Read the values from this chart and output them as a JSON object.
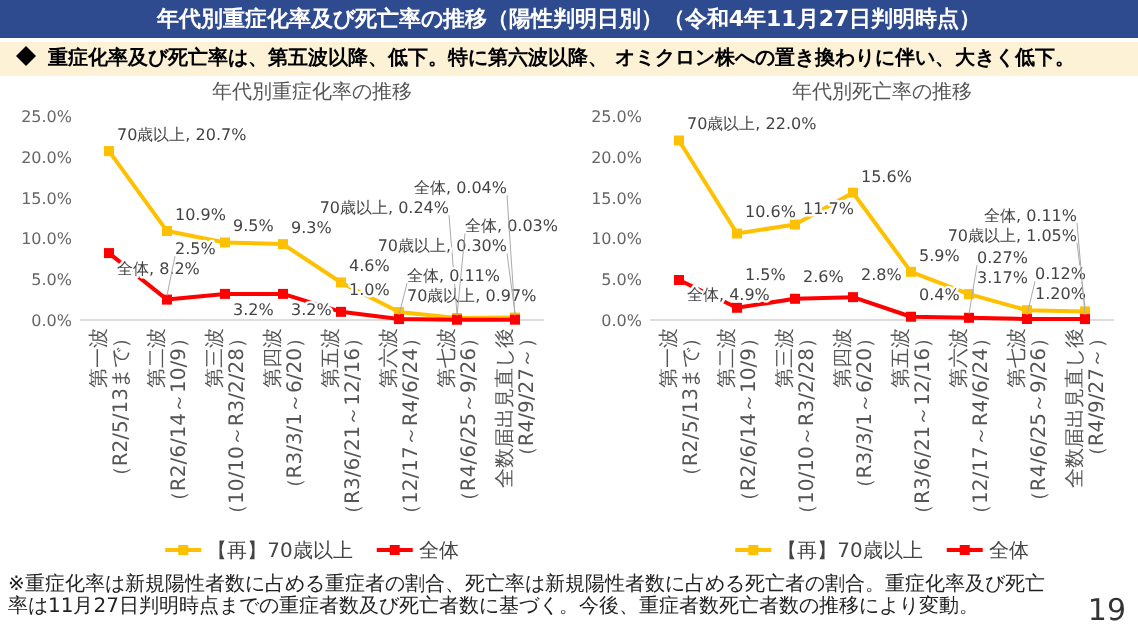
{
  "chart_data": [
    {
      "type": "other",
      "title": "年代別重症化率及び死亡率の推移（陽性判明日別）（令和4年11月27日判明時点）",
      "subtitle": "重症化率及び死亡率は、第五波以降、低下。特に第六波以降、 オミクロン株への置き換わりに伴い、大きく低下。",
      "annotations": [
        "※重症化率は新規陽性者数に占める重症者の割合、死亡率は新規陽性者数に占める死亡者の割合。重症化率及び死亡率は11月27日判明時点までの重症者数及び死亡者数に基づく。今後、重症者数死亡者数の推移により変動。",
        "19"
      ]
    },
    {
      "type": "line",
      "title": "年代別重症化率の推移",
      "categories": [
        "第一波（R2/5/13まで）",
        "第二波（R2/6/14～10/9）",
        "第三波（10/10～R3/2/28）",
        "第四波（R3/3/1～6/20）",
        "第五波（R3/6/21～12/16）",
        "第六波（12/17～R4/6/24）",
        "第七波（R4/6/25～9/26）",
        "全数届出見直し後（R4/9/27～）"
      ],
      "series": [
        {
          "name": "【再】70歳以上",
          "color": "#ffc000",
          "values": [
            20.7,
            10.9,
            9.5,
            9.3,
            4.6,
            0.97,
            0.24,
            0.3
          ],
          "value_labels": [
            "70歳以上, 20.7%",
            "10.9%",
            "9.5%",
            "9.3%",
            "4.6%",
            "70歳以上, 0.97%",
            "70歳以上, 0.24%",
            "70歳以上, 0.30%"
          ]
        },
        {
          "name": "全体",
          "color": "#ff0000",
          "values": [
            8.2,
            2.5,
            3.2,
            3.2,
            1.0,
            0.11,
            0.03,
            0.04
          ],
          "value_labels": [
            "全体, 8.2%",
            "2.5%",
            "3.2%",
            "3.2%",
            "1.0%",
            "全体, 0.11%",
            "全体, 0.03%",
            "全体, 0.04%"
          ]
        }
      ],
      "ylim": [
        0,
        25
      ],
      "yticks": [
        {
          "value": 0,
          "label": "0.0%"
        },
        {
          "value": 5,
          "label": "5.0%"
        },
        {
          "value": 10,
          "label": "10.0%"
        },
        {
          "value": 15,
          "label": "15.0%"
        },
        {
          "value": 20,
          "label": "20.0%"
        },
        {
          "value": 25,
          "label": "25.0%"
        }
      ],
      "marker": "square",
      "legend": "bottom"
    },
    {
      "type": "line",
      "title": "年代別死亡率の推移",
      "categories": [
        "第一波（R2/5/13まで）",
        "第二波（R2/6/14～10/9）",
        "第三波（10/10～R3/2/28）",
        "第四波（R3/3/1～6/20）",
        "第五波（R3/6/21～12/16）",
        "第六波（12/17～R4/6/24）",
        "第七波（R4/6/25～9/26）",
        "全数届出見直し後（R4/9/27～）"
      ],
      "series": [
        {
          "name": "【再】70歳以上",
          "color": "#ffc000",
          "values": [
            22.0,
            10.6,
            11.7,
            15.6,
            5.9,
            3.17,
            1.2,
            1.05
          ],
          "value_labels": [
            "70歳以上, 22.0%",
            "10.6%",
            "11.7%",
            "15.6%",
            "5.9%",
            "3.17%",
            "1.20%",
            "70歳以上, 1.05%"
          ]
        },
        {
          "name": "全体",
          "color": "#ff0000",
          "values": [
            4.9,
            1.5,
            2.6,
            2.8,
            0.4,
            0.27,
            0.12,
            0.11
          ],
          "value_labels": [
            "全体, 4.9%",
            "1.5%",
            "2.6%",
            "2.8%",
            "0.4%",
            "0.27%",
            "0.12%",
            "全体, 0.11%"
          ]
        }
      ],
      "ylim": [
        0,
        25
      ],
      "yticks": [
        {
          "value": 0,
          "label": "0.0%"
        },
        {
          "value": 5,
          "label": "5.0%"
        },
        {
          "value": 10,
          "label": "10.0%"
        },
        {
          "value": 15,
          "label": "15.0%"
        },
        {
          "value": 20,
          "label": "20.0%"
        },
        {
          "value": 25,
          "label": "25.0%"
        }
      ],
      "marker": "square",
      "legend": "bottom"
    }
  ]
}
